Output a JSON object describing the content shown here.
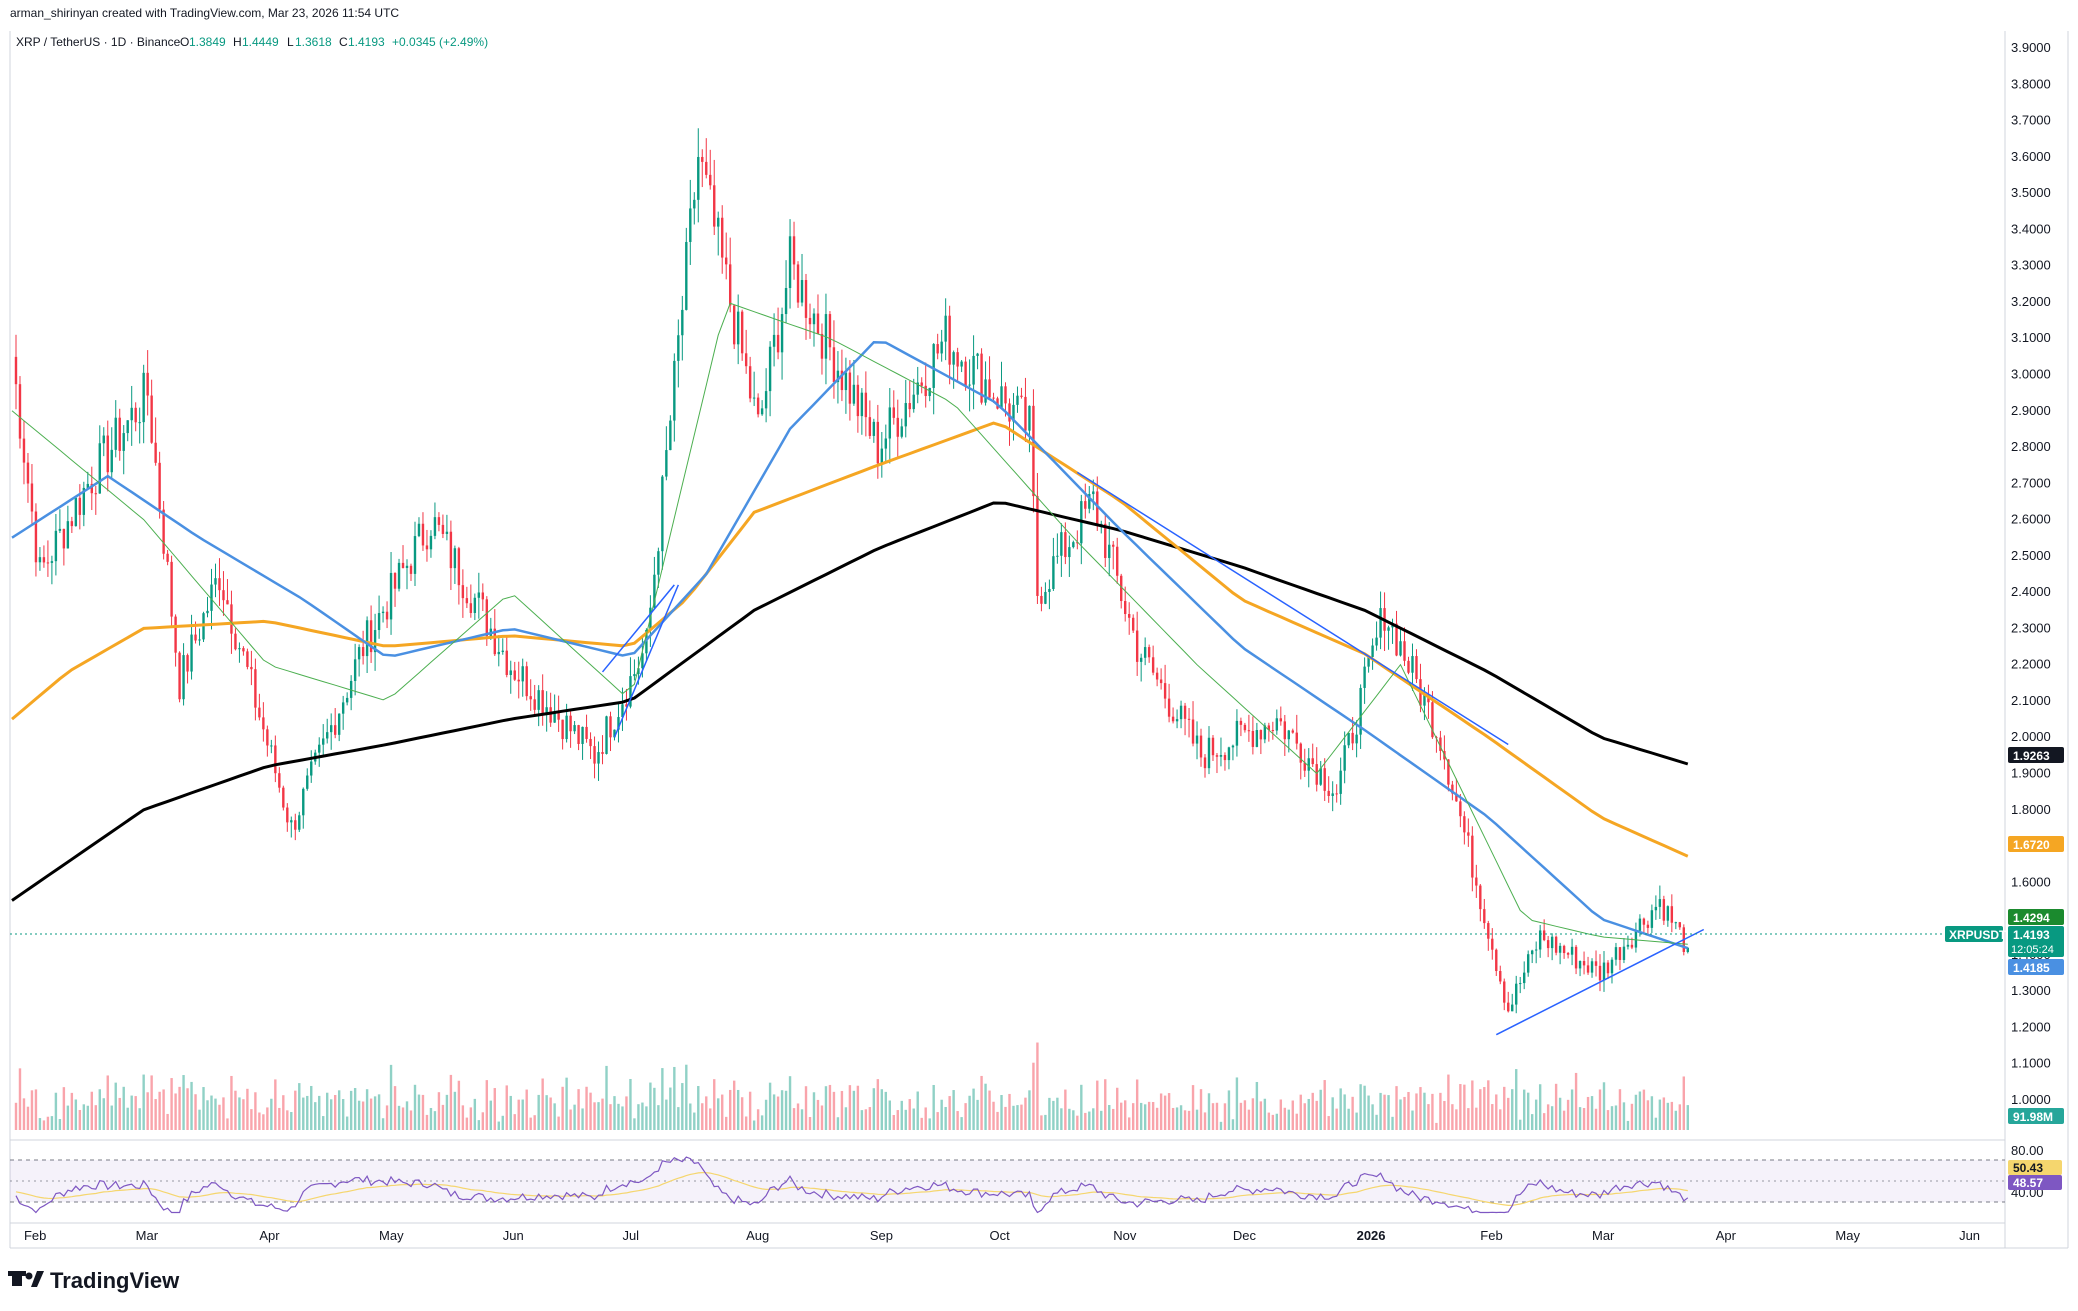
{
  "header": {
    "credit": "arman_shirinyan created with TradingView.com, Mar 23, 2026 11:54 UTC",
    "symbol": "XRP / TetherUS · 1D · Binance",
    "open_label": "O",
    "open": "1.3849",
    "high_label": "H",
    "high": "1.4449",
    "low_label": "L",
    "low": "1.3618",
    "close_label": "C",
    "close": "1.4193",
    "change": "+0.0345 (+2.49%)"
  },
  "branding": {
    "logo_text": "TradingView"
  },
  "price_axis": {
    "ticks": [
      "3.9000",
      "3.8000",
      "3.7000",
      "3.6000",
      "3.5000",
      "3.4000",
      "3.3000",
      "3.2000",
      "3.1000",
      "3.0000",
      "2.9000",
      "2.8000",
      "2.7000",
      "2.6000",
      "2.5000",
      "2.4000",
      "2.3000",
      "2.2000",
      "2.1000",
      "2.0000",
      "1.9000",
      "1.8000",
      "1.7000",
      "1.6000",
      "1.5000",
      "1.4000",
      "1.3000",
      "1.2000",
      "1.1000",
      "1.0000"
    ]
  },
  "time_axis": {
    "labels": [
      "Feb",
      "Mar",
      "Apr",
      "May",
      "Jun",
      "Jul",
      "Aug",
      "Sep",
      "Oct",
      "Nov",
      "Dec",
      "2026",
      "Feb",
      "Mar",
      "Apr",
      "May",
      "Jun"
    ]
  },
  "badges": {
    "ma200": "1.9263",
    "ma100": "1.6720",
    "ma50_hi": "1.4294",
    "symbol_tag": "XRPUSDT",
    "last_price": "1.4193",
    "countdown": "12:05:24",
    "ma_blue": "1.4185",
    "volume": "91.98M"
  },
  "rsi": {
    "ticks": [
      "80.00",
      "40.00"
    ],
    "rsi_value": "48.57",
    "ma_value": "50.43"
  },
  "colors": {
    "up": "#089981",
    "down": "#f23645",
    "ma20": "#4caf50",
    "ma50": "#4a90e2",
    "ma100": "#f5a623",
    "ma200": "#000000",
    "trend": "#2962ff",
    "rsi": "#7e57c2"
  },
  "chart_data": {
    "type": "candlestick",
    "symbol": "XRP / TetherUS",
    "interval": "1D",
    "exchange": "Binance",
    "ylim": [
      1.0,
      3.9
    ],
    "x_range": [
      "2025-01-27",
      "2026-06-10"
    ],
    "grid": false,
    "series": [
      {
        "name": "ma200",
        "points": [
          [
            "2025-01-27",
            1.55
          ],
          [
            "2025-03-01",
            1.8
          ],
          [
            "2025-04-01",
            1.92
          ],
          [
            "2025-05-01",
            1.98
          ],
          [
            "2025-06-01",
            2.05
          ],
          [
            "2025-07-01",
            2.1
          ],
          [
            "2025-08-01",
            2.35
          ],
          [
            "2025-09-01",
            2.52
          ],
          [
            "2025-10-01",
            2.65
          ],
          [
            "2025-11-01",
            2.57
          ],
          [
            "2025-12-01",
            2.47
          ],
          [
            "2026-01-01",
            2.35
          ],
          [
            "2026-02-01",
            2.18
          ],
          [
            "2026-03-01",
            2.0
          ],
          [
            "2026-03-23",
            1.9263
          ]
        ]
      },
      {
        "name": "ma100",
        "points": [
          [
            "2025-01-27",
            2.05
          ],
          [
            "2025-02-10",
            2.18
          ],
          [
            "2025-03-01",
            2.3
          ],
          [
            "2025-04-01",
            2.32
          ],
          [
            "2025-05-01",
            2.25
          ],
          [
            "2025-06-01",
            2.28
          ],
          [
            "2025-07-01",
            2.25
          ],
          [
            "2025-07-15",
            2.38
          ],
          [
            "2025-08-01",
            2.62
          ],
          [
            "2025-09-01",
            2.75
          ],
          [
            "2025-10-01",
            2.87
          ],
          [
            "2025-11-01",
            2.65
          ],
          [
            "2025-12-01",
            2.38
          ],
          [
            "2026-01-01",
            2.23
          ],
          [
            "2026-02-01",
            2.0
          ],
          [
            "2026-03-01",
            1.78
          ],
          [
            "2026-03-23",
            1.672
          ]
        ]
      },
      {
        "name": "ma50",
        "points": [
          [
            "2025-01-27",
            2.55
          ],
          [
            "2025-02-20",
            2.72
          ],
          [
            "2025-03-15",
            2.55
          ],
          [
            "2025-04-10",
            2.38
          ],
          [
            "2025-05-01",
            2.22
          ],
          [
            "2025-06-01",
            2.3
          ],
          [
            "2025-07-01",
            2.22
          ],
          [
            "2025-07-20",
            2.45
          ],
          [
            "2025-08-10",
            2.85
          ],
          [
            "2025-09-01",
            3.1
          ],
          [
            "2025-10-01",
            2.92
          ],
          [
            "2025-11-01",
            2.57
          ],
          [
            "2025-12-01",
            2.25
          ],
          [
            "2026-01-01",
            2.02
          ],
          [
            "2026-02-01",
            1.78
          ],
          [
            "2026-03-01",
            1.5
          ],
          [
            "2026-03-23",
            1.4185
          ]
        ]
      },
      {
        "name": "ma20",
        "points": [
          [
            "2025-01-27",
            2.9
          ],
          [
            "2025-03-01",
            2.6
          ],
          [
            "2025-04-01",
            2.2
          ],
          [
            "2025-05-01",
            2.1
          ],
          [
            "2025-06-01",
            2.4
          ],
          [
            "2025-07-01",
            2.1
          ],
          [
            "2025-07-25",
            3.2
          ],
          [
            "2025-08-20",
            3.1
          ],
          [
            "2025-09-20",
            2.92
          ],
          [
            "2025-10-20",
            2.55
          ],
          [
            "2025-11-20",
            2.2
          ],
          [
            "2025-12-20",
            1.9
          ],
          [
            "2026-01-10",
            2.2
          ],
          [
            "2026-02-10",
            1.5
          ],
          [
            "2026-03-01",
            1.45
          ],
          [
            "2026-03-23",
            1.4294
          ]
        ]
      }
    ],
    "price_path": [
      [
        "2025-01-27",
        3.05
      ],
      [
        "2025-02-03",
        2.45
      ],
      [
        "2025-02-15",
        2.7
      ],
      [
        "2025-03-02",
        2.95
      ],
      [
        "2025-03-10",
        2.15
      ],
      [
        "2025-03-20",
        2.45
      ],
      [
        "2025-04-07",
        1.75
      ],
      [
        "2025-04-25",
        2.25
      ],
      [
        "2025-05-12",
        2.6
      ],
      [
        "2025-06-01",
        2.2
      ],
      [
        "2025-06-22",
        1.95
      ],
      [
        "2025-07-05",
        2.25
      ],
      [
        "2025-07-18",
        3.6
      ],
      [
        "2025-08-02",
        2.85
      ],
      [
        "2025-08-10",
        3.3
      ],
      [
        "2025-09-01",
        2.8
      ],
      [
        "2025-09-18",
        3.1
      ],
      [
        "2025-10-09",
        2.85
      ],
      [
        "2025-10-11",
        2.4
      ],
      [
        "2025-10-25",
        2.65
      ],
      [
        "2025-11-05",
        2.25
      ],
      [
        "2025-11-21",
        1.95
      ],
      [
        "2025-12-10",
        2.05
      ],
      [
        "2025-12-25",
        1.85
      ],
      [
        "2026-01-06",
        2.35
      ],
      [
        "2026-01-20",
        2.0
      ],
      [
        "2026-02-06",
        1.25
      ],
      [
        "2026-02-14",
        1.45
      ],
      [
        "2026-03-01",
        1.35
      ],
      [
        "2026-03-16",
        1.55
      ],
      [
        "2026-03-23",
        1.4193
      ]
    ],
    "trendlines": [
      {
        "from": [
          "2025-06-27",
          2.0
        ],
        "to": [
          "2025-07-13",
          2.42
        ]
      },
      {
        "from": [
          "2025-06-24",
          2.18
        ],
        "to": [
          "2025-07-12",
          2.42
        ]
      },
      {
        "from": [
          "2025-10-21",
          2.73
        ],
        "to": [
          "2026-02-06",
          1.98
        ]
      },
      {
        "from": [
          "2026-02-03",
          1.18
        ],
        "to": [
          "2026-03-27",
          1.47
        ]
      }
    ],
    "rsi_panel": {
      "ylim": [
        40,
        80
      ],
      "rsi_last": 48.57,
      "ma_last": 50.43
    }
  }
}
